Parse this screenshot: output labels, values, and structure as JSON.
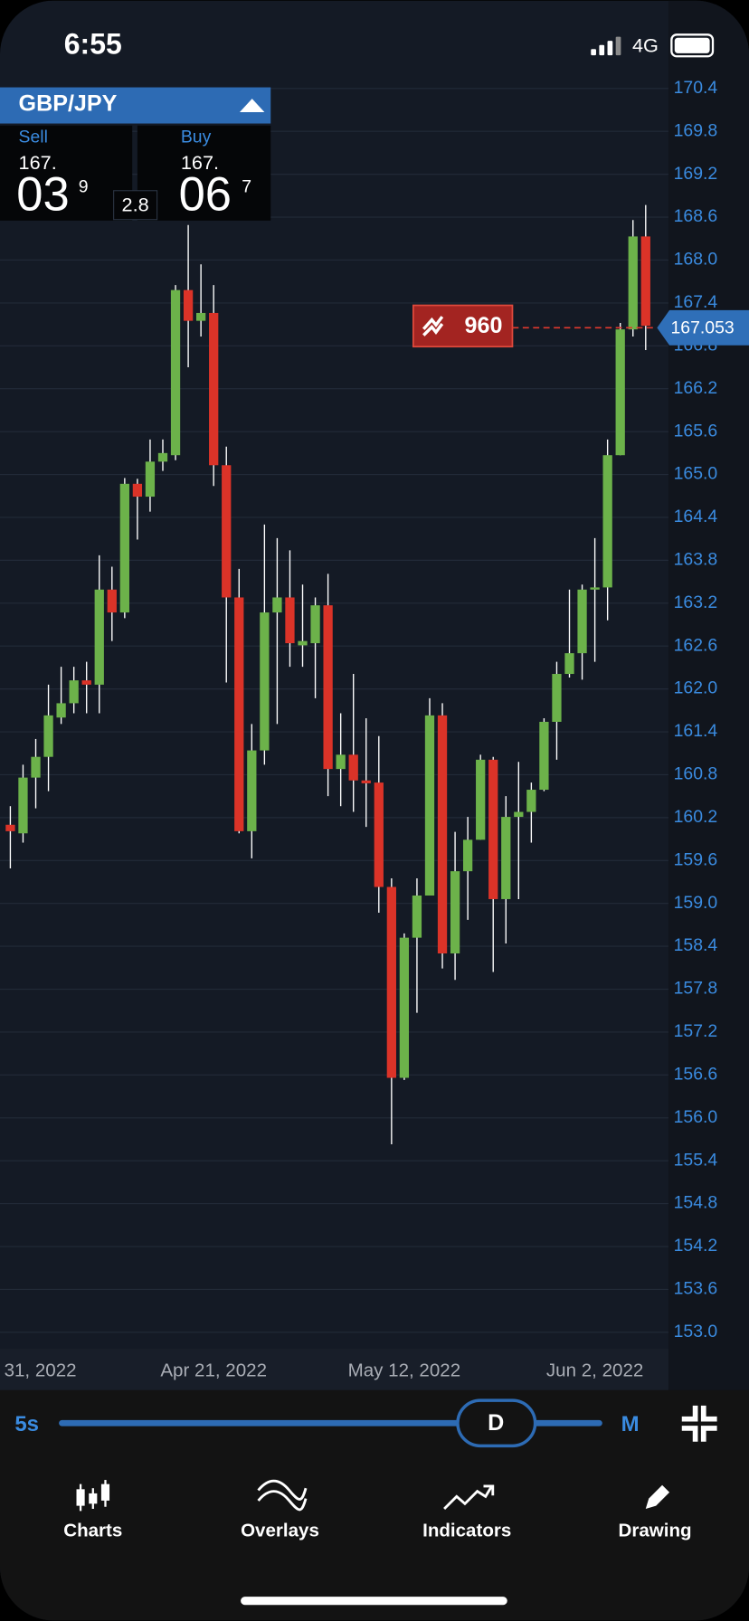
{
  "status_bar": {
    "time": "6:55",
    "network": "4G"
  },
  "ticket": {
    "pair": "GBP/JPY",
    "spread": "2.8",
    "sell": {
      "label": "Sell",
      "big_figure": "167.",
      "pips": "03",
      "fraction": "9"
    },
    "buy": {
      "label": "Buy",
      "big_figure": "167.",
      "pips": "06",
      "fraction": "7"
    }
  },
  "order_badge": {
    "quantity": "960"
  },
  "chart_data": {
    "type": "candlestick",
    "categories": [
      null,
      "31, 2022",
      null,
      null,
      null,
      null,
      null,
      null,
      null,
      null,
      null,
      null,
      null,
      null,
      null,
      null,
      "Apr 21, 2022",
      null,
      null,
      null,
      null,
      null,
      null,
      null,
      null,
      null,
      null,
      null,
      null,
      null,
      null,
      "May 12, 2022",
      null,
      null,
      null,
      null,
      null,
      null,
      null,
      null,
      null,
      null,
      null,
      null,
      null,
      null,
      "Jun 2, 2022",
      null,
      null,
      null,
      null
    ],
    "open": [
      160.1,
      159.98,
      160.76,
      161.05,
      161.6,
      161.8,
      162.12,
      162.06,
      163.39,
      163.07,
      164.87,
      164.69,
      165.18,
      165.27,
      167.58,
      167.15,
      167.26,
      165.13,
      163.28,
      160.01,
      161.14,
      163.07,
      163.28,
      162.61,
      162.64,
      163.17,
      160.88,
      161.08,
      160.72,
      160.69,
      159.23,
      156.56,
      158.52,
      159.11,
      161.63,
      158.3,
      159.45,
      159.89,
      161.01,
      159.06,
      160.21,
      160.28,
      160.59,
      161.54,
      162.21,
      162.5,
      163.39,
      163.42,
      165.27,
      167.03,
      168.33
    ],
    "high": [
      160.36,
      160.94,
      161.3,
      162.06,
      162.31,
      162.31,
      162.38,
      163.87,
      163.71,
      164.95,
      164.94,
      165.49,
      165.49,
      167.65,
      168.49,
      167.94,
      167.65,
      165.39,
      163.68,
      161.51,
      164.3,
      164.11,
      163.94,
      163.46,
      163.28,
      163.61,
      161.66,
      162.21,
      161.59,
      161.34,
      159.35,
      158.58,
      159.35,
      161.87,
      161.8,
      160.0,
      160.21,
      161.08,
      161.05,
      160.5,
      160.98,
      160.69,
      161.59,
      162.38,
      163.39,
      163.46,
      164.11,
      165.49,
      167.12,
      168.56,
      168.77
    ],
    "low": [
      159.49,
      159.85,
      160.33,
      160.57,
      161.51,
      161.66,
      161.66,
      161.66,
      162.67,
      162.99,
      164.09,
      164.48,
      165.05,
      165.2,
      166.5,
      166.93,
      164.84,
      162.09,
      159.98,
      159.63,
      160.94,
      161.51,
      162.31,
      162.31,
      161.87,
      160.5,
      160.36,
      160.28,
      160.07,
      158.87,
      155.63,
      156.53,
      157.47,
      159.11,
      158.09,
      157.93,
      158.77,
      159.89,
      158.04,
      158.44,
      159.06,
      159.85,
      160.57,
      161.01,
      162.16,
      162.13,
      162.38,
      162.96,
      165.27,
      166.93,
      166.74
    ],
    "close": [
      160.01,
      160.76,
      161.05,
      161.63,
      161.8,
      162.12,
      162.06,
      163.39,
      163.07,
      164.87,
      164.69,
      165.18,
      165.3,
      167.58,
      167.15,
      167.26,
      165.13,
      163.28,
      160.01,
      161.14,
      163.07,
      163.28,
      162.64,
      162.67,
      163.17,
      160.88,
      161.08,
      160.72,
      160.68,
      159.23,
      156.56,
      158.52,
      159.11,
      161.63,
      158.3,
      159.45,
      159.89,
      161.01,
      159.06,
      160.21,
      160.28,
      160.59,
      161.54,
      162.21,
      162.5,
      163.39,
      163.42,
      165.27,
      167.03,
      168.33,
      167.08
    ],
    "up_color": "#6cb24a",
    "down_color": "#db3328",
    "last_price": 167.053,
    "last_price_color": "#2f6fb8",
    "ylim": [
      152.77,
      171.63
    ],
    "yticks": [
      170.4,
      169.8,
      169.2,
      168.6,
      {
        "value": 168,
        "label": "168.0"
      },
      167.4,
      166.8,
      166.2,
      165.6,
      {
        "value": 165,
        "label": "165.0"
      },
      164.4,
      163.8,
      163.2,
      162.6,
      {
        "value": 162,
        "label": "162.0"
      },
      161.4,
      160.8,
      160.2,
      159.6,
      {
        "value": 159,
        "label": "159.0"
      },
      158.4,
      157.8,
      157.2,
      156.6,
      {
        "value": 156,
        "label": "156.0"
      },
      155.4,
      154.8,
      154.2,
      153.6,
      {
        "value": 153,
        "label": "153.0"
      }
    ],
    "grid": true
  },
  "timeframe": {
    "min": "5s",
    "selected": "D",
    "max": "M"
  },
  "toolbar": {
    "items": [
      "Charts",
      "Overlays",
      "Indicators",
      "Drawing"
    ]
  }
}
